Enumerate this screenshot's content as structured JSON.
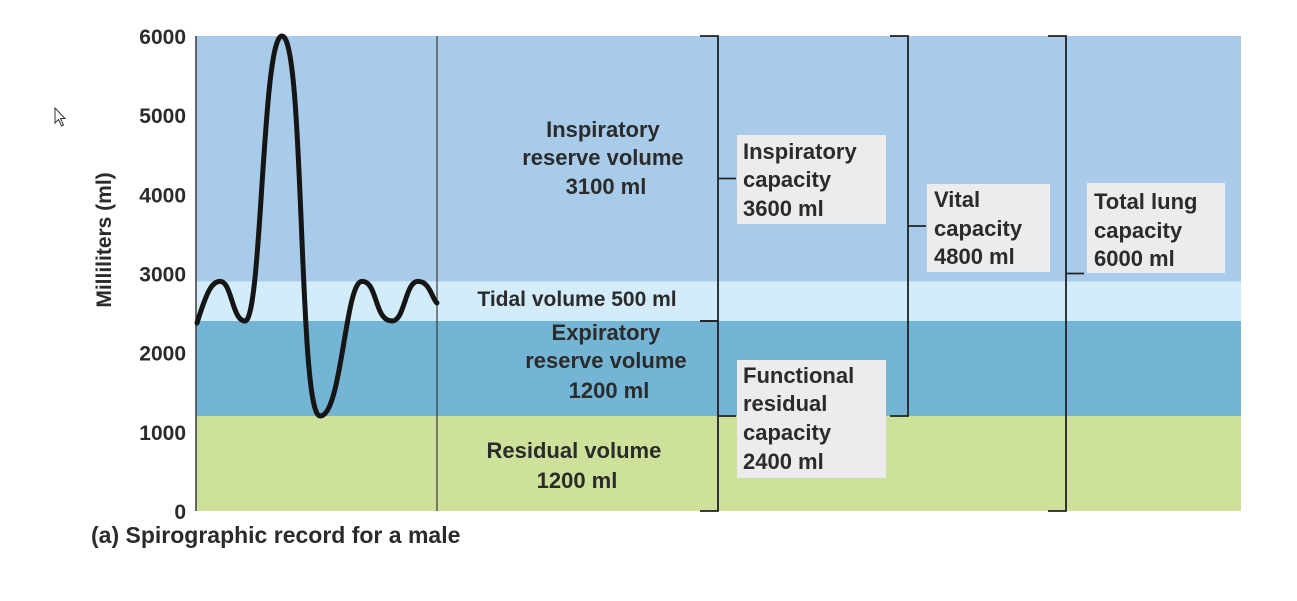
{
  "chart_data": {
    "type": "area",
    "ylabel": "Milliliters (ml)",
    "y_ticks": [
      "0",
      "1000",
      "2000",
      "3000",
      "4000",
      "5000",
      "6000"
    ],
    "ylim": [
      0,
      6000
    ],
    "caption": "(a) Spirographic record for a male",
    "bands": [
      {
        "id": "residual",
        "from": 0,
        "to": 1200,
        "color": "#cde19a"
      },
      {
        "id": "expiratory",
        "from": 1200,
        "to": 2400,
        "color": "#74b5d6"
      },
      {
        "id": "tidal",
        "from": 2400,
        "to": 2900,
        "color": "#d2ecfa"
      },
      {
        "id": "inspiratory",
        "from": 2900,
        "to": 6000,
        "color": "#a9cbea"
      }
    ],
    "volumes": {
      "inspiratory_reserve": {
        "lines": [
          "Inspiratory",
          "reserve volume",
          "3100 ml"
        ],
        "value_ml": 3100
      },
      "tidal": {
        "lines": [
          "Tidal volume 500 ml"
        ],
        "value_ml": 500
      },
      "expiratory_reserve": {
        "lines": [
          "Expiratory",
          "reserve volume",
          "1200 ml"
        ],
        "value_ml": 1200
      },
      "residual": {
        "lines": [
          "Residual volume",
          "1200 ml"
        ],
        "value_ml": 1200
      }
    },
    "capacities": {
      "inspiratory": {
        "lines": [
          "Inspiratory",
          "capacity",
          "3600 ml"
        ],
        "value_ml": 3600
      },
      "functional_residual": {
        "lines": [
          "Functional",
          "residual",
          "capacity",
          "2400 ml"
        ],
        "value_ml": 2400
      },
      "vital": {
        "lines": [
          "Vital",
          "capacity",
          "4800 ml"
        ],
        "value_ml": 4800
      },
      "total_lung": {
        "lines": [
          "Total lung",
          "capacity",
          "6000 ml"
        ],
        "value_ml": 6000
      }
    }
  },
  "cursor_icon": "mouse-pointer-icon"
}
